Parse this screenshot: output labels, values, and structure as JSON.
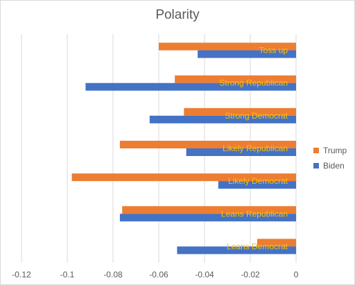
{
  "chart_data": {
    "type": "bar",
    "orientation": "horizontal",
    "title": "Polarity",
    "categories": [
      "Toss up",
      "Strong Republican",
      "Strong Democrat",
      "Likely Republican",
      "Likely Democrat",
      "Leans Republican",
      "Leans Democrat"
    ],
    "series": [
      {
        "name": "Trump",
        "color": "#ED7D31",
        "values": [
          -0.06,
          -0.053,
          -0.049,
          -0.077,
          -0.098,
          -0.076,
          -0.017
        ]
      },
      {
        "name": "Biden",
        "color": "#4472C4",
        "values": [
          -0.043,
          -0.092,
          -0.064,
          -0.048,
          -0.034,
          -0.077,
          -0.052
        ]
      }
    ],
    "xlim": [
      -0.12,
      0
    ],
    "xticks": [
      -0.12,
      -0.1,
      -0.08,
      -0.06,
      -0.04,
      -0.02,
      0
    ],
    "xtick_labels": [
      "-0.12",
      "-0.1",
      "-0.08",
      "-0.06",
      "-0.04",
      "-0.02",
      "0"
    ],
    "grid": true,
    "legend_position": "right",
    "category_label_color": "#FFC000",
    "gridline_color": "#d9d9d9",
    "axis_text_color": "#595959"
  }
}
